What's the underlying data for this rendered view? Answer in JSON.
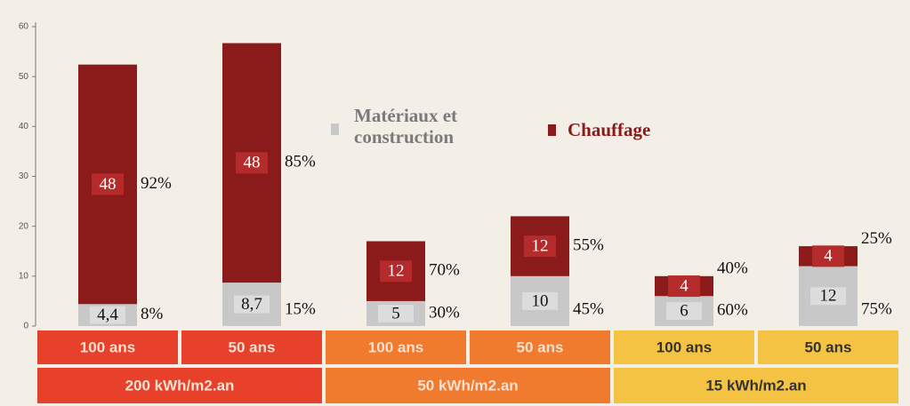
{
  "chart_data": {
    "type": "stacked-bar",
    "categories": [
      "100 ans",
      "50 ans",
      "100 ans",
      "50 ans",
      "100 ans",
      "50 ans"
    ],
    "groups": [
      {
        "label": "200 kWh/m2.an",
        "span": 2,
        "color": "#e8412b"
      },
      {
        "label": "50 kWh/m2.an",
        "span": 2,
        "color": "#f07a2e"
      },
      {
        "label": "15 kWh/m2.an",
        "span": 2,
        "color": "#f4c343"
      }
    ],
    "category_colors": [
      "#e8412b",
      "#e8412b",
      "#f07a2e",
      "#f07a2e",
      "#f4c343",
      "#f4c343"
    ],
    "series": [
      {
        "name": "Matériaux et construction",
        "color": "#c8c8c8",
        "values": [
          4.4,
          8.7,
          5,
          10,
          6,
          12
        ],
        "value_labels": [
          "4,4",
          "8,7",
          "5",
          "10",
          "6",
          "12"
        ],
        "shares": [
          "8%",
          "15%",
          "30%",
          "45%",
          "60%",
          "75%"
        ]
      },
      {
        "name": "Chauffage",
        "color": "#8b1a1a",
        "values": [
          48,
          48,
          12,
          12,
          4,
          4
        ],
        "shares": [
          "92%",
          "85%",
          "70%",
          "55%",
          "40%",
          "25%"
        ]
      }
    ],
    "ylim": [
      0,
      60
    ],
    "yticks": [
      0,
      10,
      20,
      30,
      40,
      50,
      60
    ],
    "grid": false
  }
}
